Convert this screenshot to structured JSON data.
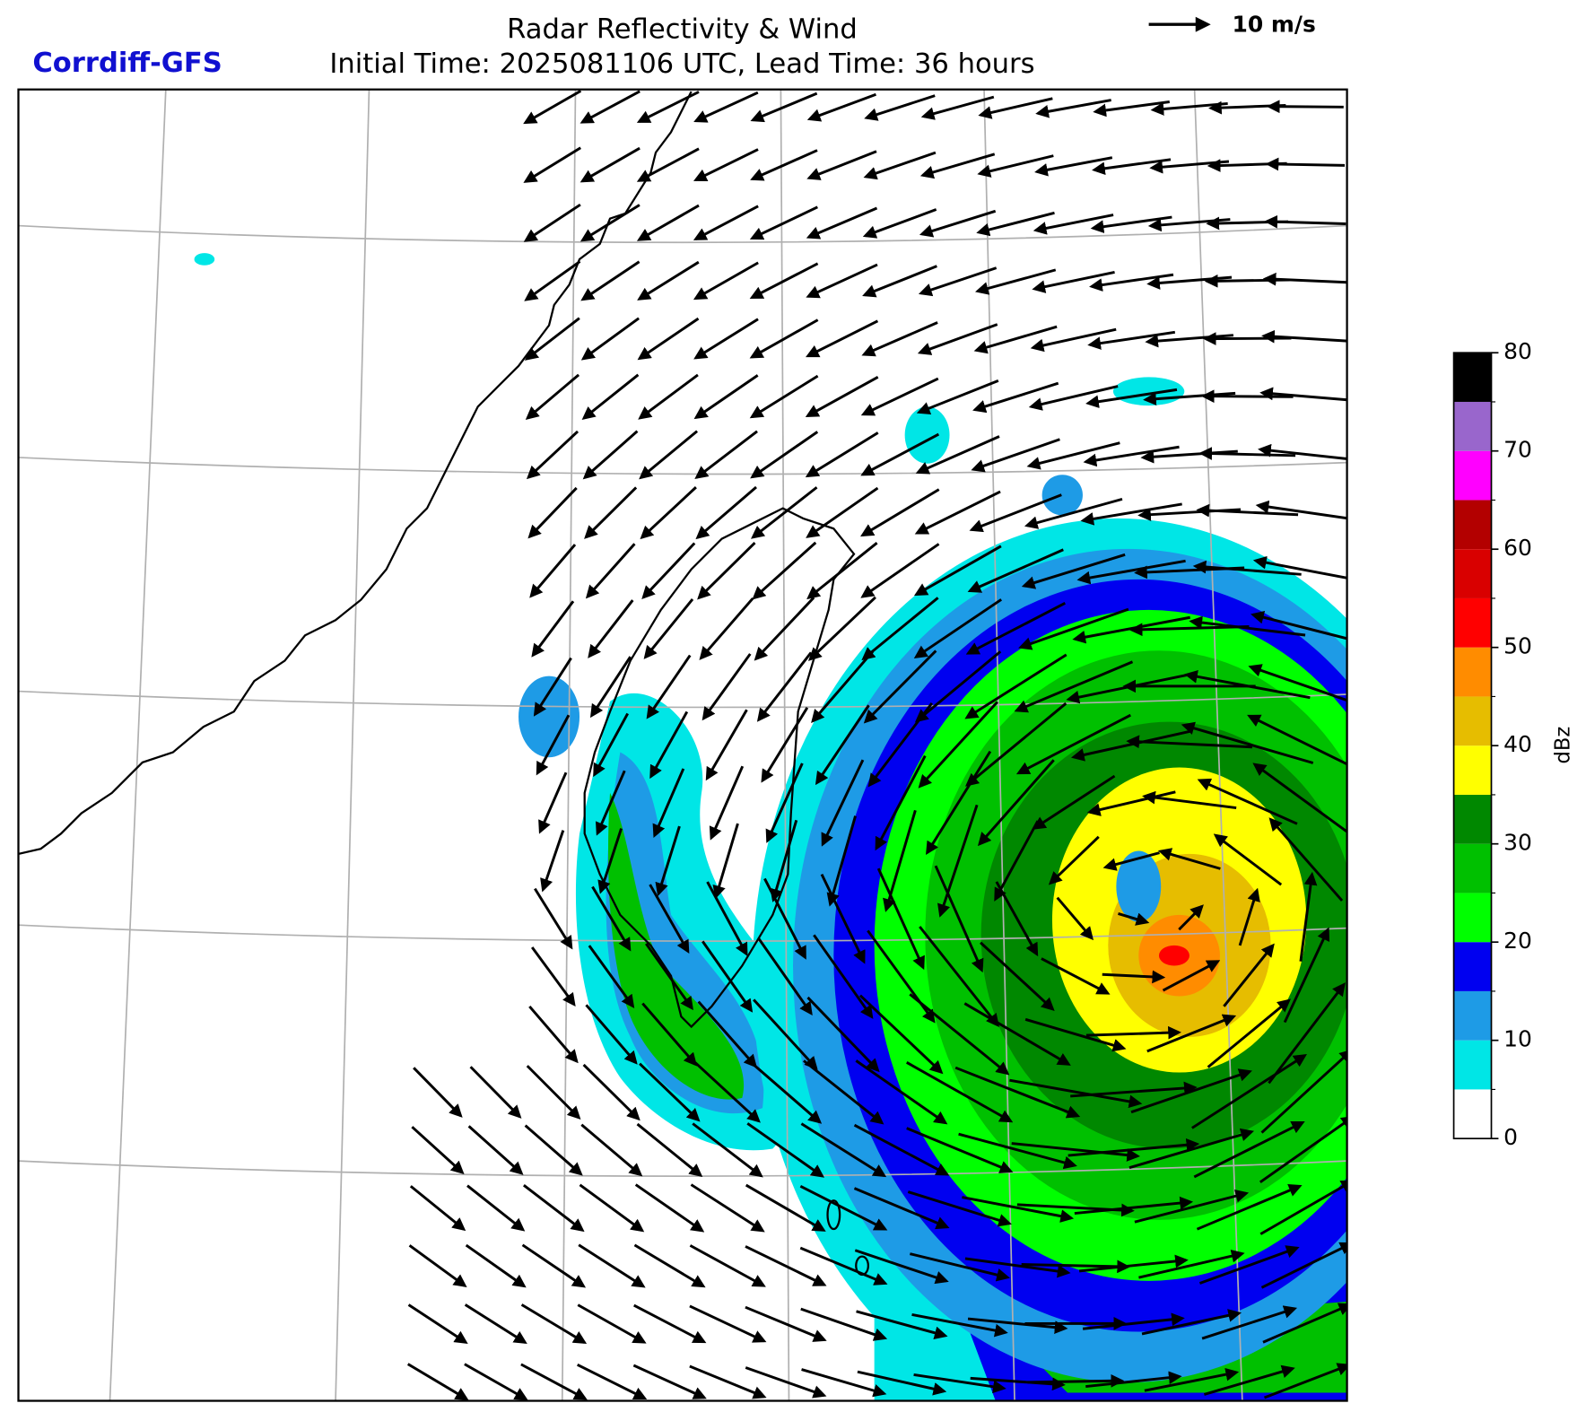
{
  "header": {
    "title": "Radar Reflectivity & Wind",
    "subtitle": "Initial Time: 2025081106 UTC, Lead Time: 36 hours",
    "model": "Corrdiff-GFS",
    "wind_key": "10 m/s"
  },
  "colorbar": {
    "label": "dBz",
    "levels": [
      0,
      5,
      10,
      15,
      20,
      25,
      30,
      35,
      40,
      45,
      50,
      55,
      60,
      65,
      70,
      75,
      80
    ],
    "ticks": [
      0,
      10,
      20,
      30,
      40,
      50,
      60,
      70,
      80
    ],
    "colors": [
      "#ffffff",
      "#00e6e6",
      "#1e9be6",
      "#0000f0",
      "#00ff00",
      "#00c000",
      "#008800",
      "#ffff00",
      "#e6bd00",
      "#ff8c00",
      "#ff0000",
      "#d90000",
      "#b30000",
      "#ff00ff",
      "#9966cc",
      "#000000"
    ]
  }
}
